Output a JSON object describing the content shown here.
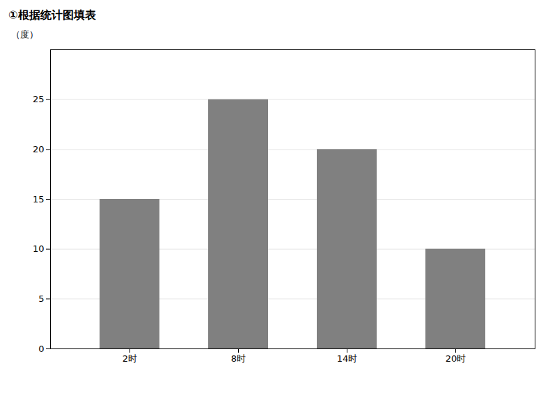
{
  "chart_data": {
    "type": "bar",
    "title": "①根据统计图填表",
    "categories": [
      "2时",
      "8时",
      "14时",
      "20时"
    ],
    "values": [
      15,
      25,
      20,
      10
    ],
    "color": "#808080",
    "ylabel": "（度）",
    "ylim": [
      0,
      30
    ],
    "yticks": [
      0,
      5,
      10,
      15,
      20,
      25
    ],
    "grid": true
  }
}
